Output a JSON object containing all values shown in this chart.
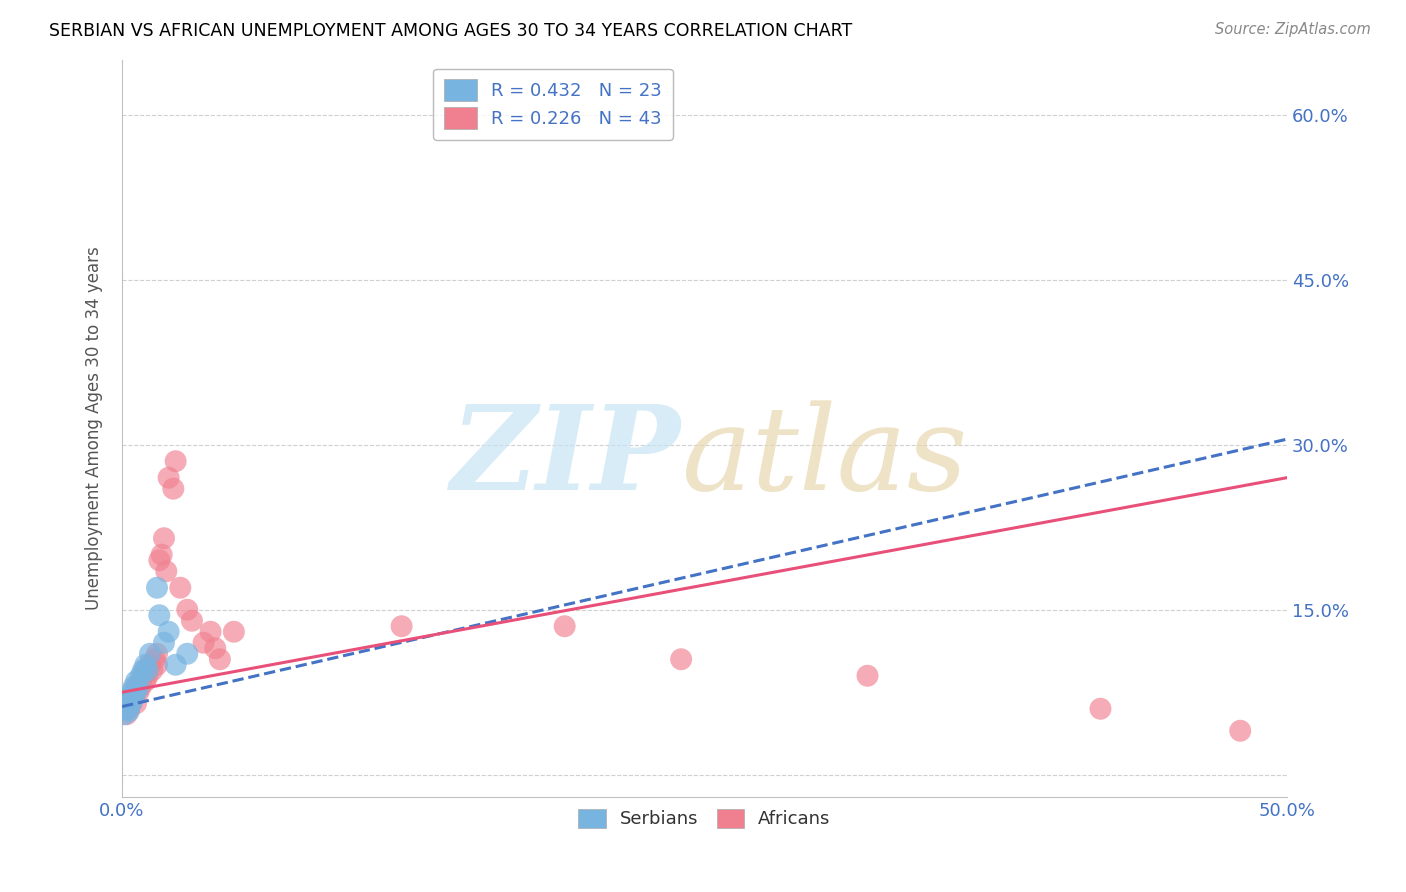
{
  "title": "SERBIAN VS AFRICAN UNEMPLOYMENT AMONG AGES 30 TO 34 YEARS CORRELATION CHART",
  "source": "Source: ZipAtlas.com",
  "ylabel": "Unemployment Among Ages 30 to 34 years",
  "xlim": [
    0.0,
    0.5
  ],
  "ylim": [
    -0.02,
    0.65
  ],
  "xticks": [
    0.0,
    0.1,
    0.2,
    0.3,
    0.4,
    0.5
  ],
  "yticks": [
    0.0,
    0.15,
    0.3,
    0.45,
    0.6
  ],
  "serbian_color": "#78b4e0",
  "african_color": "#f08090",
  "serbian_line_color": "#4472c4",
  "african_line_color": "#e8507a",
  "serbian_R": 0.432,
  "serbian_N": 23,
  "african_R": 0.226,
  "african_N": 43,
  "serbian_data_x": [
    0.001,
    0.002,
    0.002,
    0.003,
    0.003,
    0.004,
    0.004,
    0.005,
    0.005,
    0.006,
    0.006,
    0.007,
    0.008,
    0.009,
    0.01,
    0.011,
    0.012,
    0.015,
    0.016,
    0.018,
    0.02,
    0.023,
    0.028
  ],
  "serbian_data_y": [
    0.055,
    0.06,
    0.065,
    0.058,
    0.07,
    0.065,
    0.075,
    0.07,
    0.08,
    0.075,
    0.085,
    0.08,
    0.09,
    0.095,
    0.1,
    0.095,
    0.11,
    0.17,
    0.145,
    0.12,
    0.13,
    0.1,
    0.11
  ],
  "african_data_x": [
    0.001,
    0.002,
    0.002,
    0.003,
    0.003,
    0.004,
    0.005,
    0.005,
    0.006,
    0.006,
    0.007,
    0.008,
    0.008,
    0.009,
    0.01,
    0.01,
    0.011,
    0.012,
    0.013,
    0.014,
    0.015,
    0.015,
    0.016,
    0.017,
    0.018,
    0.019,
    0.02,
    0.022,
    0.023,
    0.025,
    0.028,
    0.03,
    0.035,
    0.038,
    0.04,
    0.042,
    0.048,
    0.12,
    0.19,
    0.24,
    0.32,
    0.42,
    0.48
  ],
  "african_data_y": [
    0.06,
    0.055,
    0.065,
    0.07,
    0.06,
    0.065,
    0.07,
    0.075,
    0.065,
    0.08,
    0.075,
    0.08,
    0.085,
    0.09,
    0.085,
    0.095,
    0.09,
    0.1,
    0.095,
    0.105,
    0.1,
    0.11,
    0.195,
    0.2,
    0.215,
    0.185,
    0.27,
    0.26,
    0.285,
    0.17,
    0.15,
    0.14,
    0.12,
    0.13,
    0.115,
    0.105,
    0.13,
    0.135,
    0.135,
    0.105,
    0.09,
    0.06,
    0.04
  ],
  "serb_line_x0": 0.0,
  "serb_line_y0": 0.062,
  "serb_line_x1": 0.5,
  "serb_line_y1": 0.305,
  "afr_line_x0": 0.0,
  "afr_line_y0": 0.075,
  "afr_line_x1": 0.5,
  "afr_line_y1": 0.27
}
